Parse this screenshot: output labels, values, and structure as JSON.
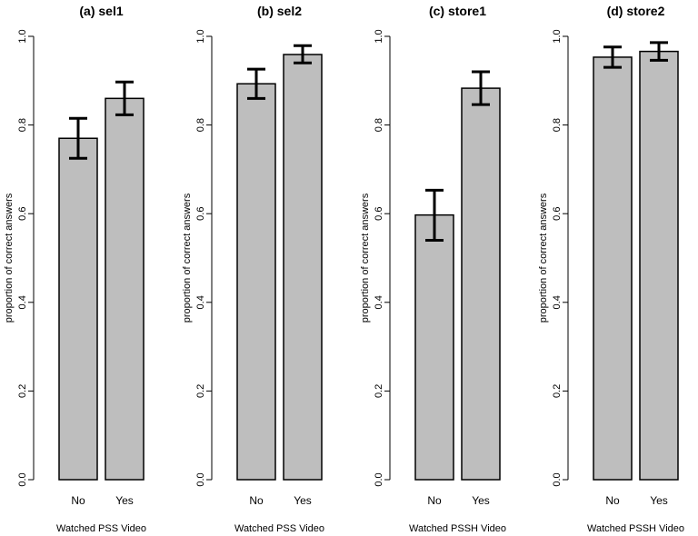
{
  "chart_data": [
    {
      "type": "bar",
      "title": "(a) sel1",
      "categories": [
        "No",
        "Yes"
      ],
      "values": [
        0.77,
        0.86
      ],
      "error_low": [
        0.725,
        0.823
      ],
      "error_high": [
        0.815,
        0.897
      ],
      "xlabel": "Watched PSS Video",
      "ylabel": "proportion of correct answers",
      "ylim": [
        0,
        1
      ],
      "yticks": [
        "0.0",
        "0.2",
        "0.4",
        "0.6",
        "0.8",
        "1.0"
      ],
      "bar_color": "#bebebe"
    },
    {
      "type": "bar",
      "title": "(b) sel2",
      "categories": [
        "No",
        "Yes"
      ],
      "values": [
        0.893,
        0.959
      ],
      "error_low": [
        0.86,
        0.94
      ],
      "error_high": [
        0.926,
        0.979
      ],
      "xlabel": "Watched PSS Video",
      "ylabel": "proportion of correct answers",
      "ylim": [
        0,
        1
      ],
      "yticks": [
        "0.0",
        "0.2",
        "0.4",
        "0.6",
        "0.8",
        "1.0"
      ],
      "bar_color": "#bebebe"
    },
    {
      "type": "bar",
      "title": "(c) store1",
      "categories": [
        "No",
        "Yes"
      ],
      "values": [
        0.597,
        0.883
      ],
      "error_low": [
        0.54,
        0.846
      ],
      "error_high": [
        0.653,
        0.92
      ],
      "xlabel": "Watched PSSH Video",
      "ylabel": "proportion of correct answers",
      "ylim": [
        0,
        1
      ],
      "yticks": [
        "0.0",
        "0.2",
        "0.4",
        "0.6",
        "0.8",
        "1.0"
      ],
      "bar_color": "#bebebe"
    },
    {
      "type": "bar",
      "title": "(d) store2",
      "categories": [
        "No",
        "Yes"
      ],
      "values": [
        0.953,
        0.966
      ],
      "error_low": [
        0.93,
        0.946
      ],
      "error_high": [
        0.976,
        0.986
      ],
      "xlabel": "Watched PSSH Video",
      "ylabel": "proportion of correct answers",
      "ylim": [
        0,
        1
      ],
      "yticks": [
        "0.0",
        "0.2",
        "0.4",
        "0.6",
        "0.8",
        "1.0"
      ],
      "bar_color": "#bebebe"
    }
  ]
}
